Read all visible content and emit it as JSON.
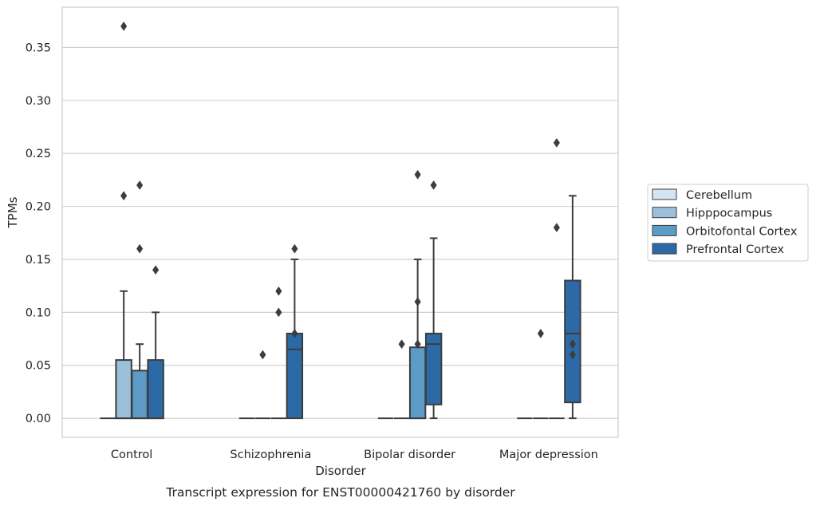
{
  "caption": "Transcript expression for ENST00000421760 by disorder",
  "chart_data": {
    "type": "box",
    "xlabel": "Disorder",
    "ylabel": "TPMs",
    "ylim": [
      -0.018,
      0.388
    ],
    "yticks": [
      0.0,
      0.05,
      0.1,
      0.15,
      0.2,
      0.25,
      0.3,
      0.35
    ],
    "ytick_labels": [
      "0.00",
      "0.05",
      "0.10",
      "0.15",
      "0.20",
      "0.25",
      "0.30",
      "0.35"
    ],
    "grid": true,
    "legend_position": "right",
    "categories": [
      "Control",
      "Schizophrenia",
      "Bipolar disorder",
      "Major depression"
    ],
    "series": [
      {
        "name": "Cerebellum",
        "color": "#d6e5f2",
        "boxes": [
          {
            "min": 0,
            "q1": 0,
            "median": 0,
            "q3": 0,
            "max": 0,
            "outliers": []
          },
          {
            "min": 0,
            "q1": 0,
            "median": 0,
            "q3": 0,
            "max": 0,
            "outliers": []
          },
          {
            "min": 0,
            "q1": 0,
            "median": 0,
            "q3": 0,
            "max": 0,
            "outliers": []
          },
          {
            "min": 0,
            "q1": 0,
            "median": 0,
            "q3": 0,
            "max": 0,
            "outliers": []
          }
        ]
      },
      {
        "name": "Hipppocampus",
        "color": "#9bc1da",
        "boxes": [
          {
            "min": 0,
            "q1": 0,
            "median": 0,
            "q3": 0.055,
            "max": 0.12,
            "outliers": [
              0.37,
              0.21
            ]
          },
          {
            "min": 0,
            "q1": 0,
            "median": 0,
            "q3": 0,
            "max": 0,
            "outliers": [
              0.06
            ]
          },
          {
            "min": 0,
            "q1": 0,
            "median": 0,
            "q3": 0,
            "max": 0,
            "outliers": [
              0.07
            ]
          },
          {
            "min": 0,
            "q1": 0,
            "median": 0,
            "q3": 0,
            "max": 0,
            "outliers": [
              0.08
            ]
          }
        ]
      },
      {
        "name": "Orbitofontal Cortex",
        "color": "#5b9bc5",
        "boxes": [
          {
            "min": 0,
            "q1": 0,
            "median": 0,
            "q3": 0.045,
            "max": 0.07,
            "outliers": [
              0.22,
              0.16
            ]
          },
          {
            "min": 0,
            "q1": 0,
            "median": 0,
            "q3": 0,
            "max": 0,
            "outliers": [
              0.12,
              0.1
            ]
          },
          {
            "min": 0,
            "q1": 0,
            "median": 0,
            "q3": 0.067,
            "max": 0.15,
            "outliers": [
              0.23,
              0.11,
              0.07
            ]
          },
          {
            "min": 0,
            "q1": 0,
            "median": 0,
            "q3": 0,
            "max": 0,
            "outliers": [
              0.26,
              0.18
            ]
          }
        ]
      },
      {
        "name": "Prefrontal Cortex",
        "color": "#2b6aa6",
        "boxes": [
          {
            "min": 0,
            "q1": 0,
            "median": 0,
            "q3": 0.055,
            "max": 0.1,
            "outliers": [
              0.14
            ]
          },
          {
            "min": 0,
            "q1": 0,
            "median": 0.065,
            "q3": 0.08,
            "max": 0.15,
            "outliers": [
              0.16,
              0.08
            ]
          },
          {
            "min": 0,
            "q1": 0.013,
            "median": 0.07,
            "q3": 0.08,
            "max": 0.17,
            "outliers": [
              0.22
            ]
          },
          {
            "min": 0,
            "q1": 0.015,
            "median": 0.08,
            "q3": 0.13,
            "max": 0.21,
            "outliers": [
              0.07,
              0.06
            ]
          }
        ]
      }
    ]
  }
}
